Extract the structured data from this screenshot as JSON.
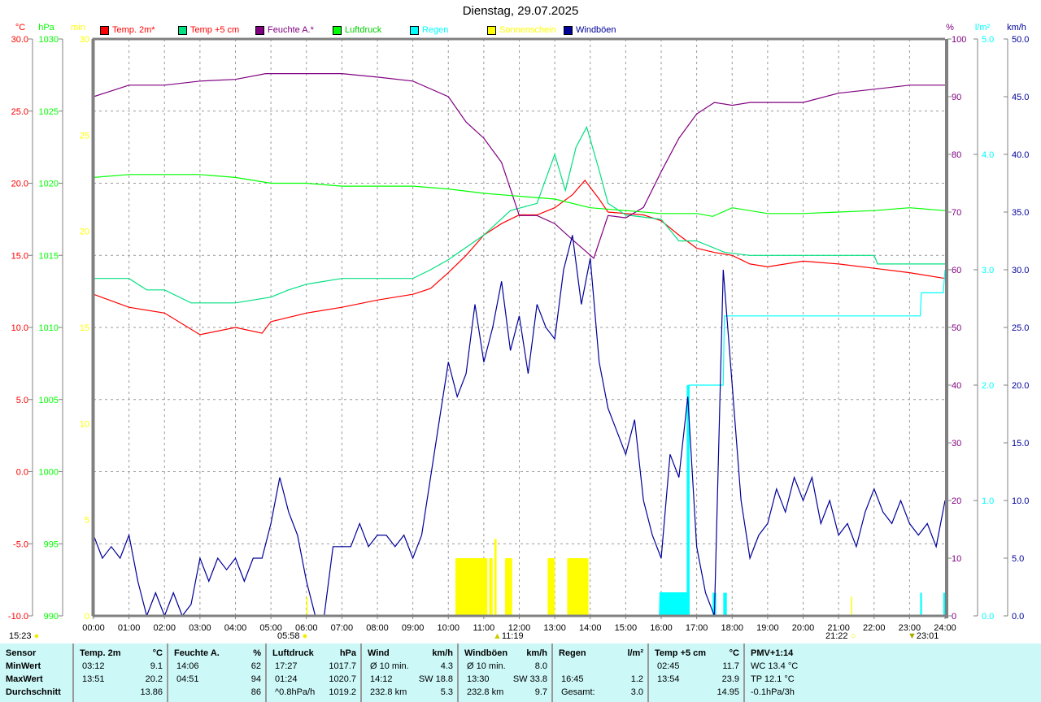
{
  "title": "Dienstag, 29.07.2025",
  "legend": [
    {
      "label": "Temp. 2m*",
      "color": "#ff0000"
    },
    {
      "label": "Temp +5 cm",
      "color": "#00e080"
    },
    {
      "label": "Feuchte A.*",
      "color": "#800080"
    },
    {
      "label": "Luftdruck",
      "color": "#00ff00"
    },
    {
      "label": "Regen",
      "color": "#00ffff"
    },
    {
      "label": "Sonnenschein",
      "color": "#ffff00"
    },
    {
      "label": "Windböen",
      "color": "#000099"
    }
  ],
  "bottom_markers": {
    "sun_hours": "15:23",
    "sunrise": "05:58",
    "noon": "11:19",
    "sunset": "21:22",
    "moon": "23:01"
  },
  "chart_data": {
    "type": "line",
    "title": "Dienstag, 29.07.2025",
    "x_ticks": [
      "00:00",
      "01:00",
      "02:00",
      "03:00",
      "04:00",
      "05:00",
      "06:00",
      "07:00",
      "08:00",
      "09:00",
      "10:00",
      "11:00",
      "12:00",
      "13:00",
      "14:00",
      "15:00",
      "16:00",
      "17:00",
      "18:00",
      "19:00",
      "20:00",
      "21:00",
      "22:00",
      "23:00",
      "24:00"
    ],
    "xlim": [
      0,
      24
    ],
    "axes": {
      "temp": {
        "unit": "°C",
        "color": "#ff0000",
        "ylim": [
          -10,
          30
        ],
        "ticks": [
          "30.0",
          "25.0",
          "20.0",
          "15.0",
          "10.0",
          "5.0",
          "0.0",
          "-5.0",
          "-10.0"
        ]
      },
      "pressure": {
        "unit": "hPa",
        "color": "#00ff00",
        "ylim": [
          990,
          1030
        ],
        "ticks": [
          "1030",
          "1025",
          "1020",
          "1015",
          "1010",
          "1005",
          "1000",
          "995",
          "990"
        ]
      },
      "sun": {
        "unit": "min",
        "color": "#ffff00",
        "ylim": [
          0,
          30
        ],
        "ticks": [
          "30",
          "25",
          "20",
          "15",
          "10",
          "5",
          "0"
        ]
      },
      "humidity": {
        "unit": "%",
        "color": "#800080",
        "ylim": [
          0,
          100
        ],
        "ticks": [
          "100",
          "90",
          "80",
          "70",
          "60",
          "50",
          "40",
          "30",
          "20",
          "10",
          "0"
        ]
      },
      "rain": {
        "unit": "l/m²",
        "color": "#00ffff",
        "ylim": [
          0,
          5
        ],
        "ticks": [
          "5.0",
          "4.0",
          "3.0",
          "2.0",
          "1.0",
          "0.0"
        ]
      },
      "gust": {
        "unit": "km/h",
        "color": "#000099",
        "ylim": [
          0,
          50
        ],
        "ticks": [
          "50.0",
          "45.0",
          "40.0",
          "35.0",
          "30.0",
          "25.0",
          "20.0",
          "15.0",
          "10.0",
          "5.0",
          "0.0"
        ]
      }
    },
    "series": [
      {
        "name": "Temp. 2m*",
        "axis": "temp",
        "color": "#ff0000",
        "points": [
          [
            0,
            12.3
          ],
          [
            1,
            11.4
          ],
          [
            2,
            11.0
          ],
          [
            3,
            9.5
          ],
          [
            4,
            10.0
          ],
          [
            4.75,
            9.6
          ],
          [
            5,
            10.4
          ],
          [
            6,
            11.0
          ],
          [
            7,
            11.4
          ],
          [
            8,
            11.9
          ],
          [
            9,
            12.3
          ],
          [
            9.5,
            12.7
          ],
          [
            10,
            13.8
          ],
          [
            10.5,
            15.0
          ],
          [
            11,
            16.4
          ],
          [
            11.5,
            17.2
          ],
          [
            12,
            17.8
          ],
          [
            12.5,
            17.8
          ],
          [
            13,
            18.3
          ],
          [
            13.5,
            19.2
          ],
          [
            13.85,
            20.2
          ],
          [
            14.25,
            18.9
          ],
          [
            14.5,
            18.0
          ],
          [
            15,
            17.9
          ],
          [
            15.5,
            17.8
          ],
          [
            16,
            17.4
          ],
          [
            16.5,
            16.4
          ],
          [
            17,
            15.5
          ],
          [
            17.5,
            15.2
          ],
          [
            18,
            15.0
          ],
          [
            18.5,
            14.4
          ],
          [
            19,
            14.2
          ],
          [
            20,
            14.6
          ],
          [
            21,
            14.4
          ],
          [
            22,
            14.1
          ],
          [
            23,
            13.8
          ],
          [
            24,
            13.4
          ]
        ]
      },
      {
        "name": "Temp +5 cm",
        "axis": "temp",
        "color": "#00e080",
        "points": [
          [
            0,
            13.4
          ],
          [
            1,
            13.4
          ],
          [
            1.5,
            12.6
          ],
          [
            2,
            12.6
          ],
          [
            2.75,
            11.7
          ],
          [
            4,
            11.7
          ],
          [
            5,
            12.1
          ],
          [
            5.5,
            12.6
          ],
          [
            6,
            13.0
          ],
          [
            7,
            13.4
          ],
          [
            9,
            13.4
          ],
          [
            9.5,
            14.0
          ],
          [
            10,
            14.7
          ],
          [
            11,
            16.4
          ],
          [
            11.75,
            18.1
          ],
          [
            12.5,
            18.6
          ],
          [
            13,
            22.0
          ],
          [
            13.3,
            19.5
          ],
          [
            13.6,
            22.5
          ],
          [
            13.9,
            23.9
          ],
          [
            14.25,
            20.9
          ],
          [
            14.5,
            18.6
          ],
          [
            15,
            17.8
          ],
          [
            16,
            17.5
          ],
          [
            16.5,
            16.0
          ],
          [
            17,
            16.0
          ],
          [
            17.8,
            15.2
          ],
          [
            18.5,
            15.0
          ],
          [
            22,
            15.0
          ],
          [
            22.1,
            14.4
          ],
          [
            24,
            14.4
          ]
        ]
      },
      {
        "name": "Feuchte A.*",
        "axis": "humidity",
        "color": "#800080",
        "points": [
          [
            0,
            90
          ],
          [
            1,
            92
          ],
          [
            2,
            92
          ],
          [
            3,
            92.7
          ],
          [
            4,
            93
          ],
          [
            4.85,
            94
          ],
          [
            6,
            94
          ],
          [
            7,
            94
          ],
          [
            8,
            93.4
          ],
          [
            9,
            92.7
          ],
          [
            10,
            90
          ],
          [
            10.5,
            85.6
          ],
          [
            11,
            82.8
          ],
          [
            11.5,
            78.6
          ],
          [
            12,
            69.4
          ],
          [
            12.5,
            69.4
          ],
          [
            13,
            68
          ],
          [
            13.5,
            65.2
          ],
          [
            14.1,
            62
          ],
          [
            14.5,
            69.4
          ],
          [
            15,
            69
          ],
          [
            15.5,
            70.8
          ],
          [
            16,
            77
          ],
          [
            16.5,
            82.8
          ],
          [
            17,
            87
          ],
          [
            17.5,
            89
          ],
          [
            18,
            88.5
          ],
          [
            18.5,
            89
          ],
          [
            20,
            89
          ],
          [
            21,
            90.6
          ],
          [
            22,
            91.3
          ],
          [
            23,
            92
          ],
          [
            24,
            92
          ]
        ]
      },
      {
        "name": "Luftdruck",
        "axis": "pressure",
        "color": "#00ff00",
        "points": [
          [
            0,
            1020.4
          ],
          [
            1,
            1020.6
          ],
          [
            2,
            1020.6
          ],
          [
            3,
            1020.6
          ],
          [
            4,
            1020.4
          ],
          [
            5,
            1020.0
          ],
          [
            6,
            1020.0
          ],
          [
            7,
            1019.8
          ],
          [
            9,
            1019.8
          ],
          [
            10,
            1019.6
          ],
          [
            11,
            1019.3
          ],
          [
            12,
            1019.1
          ],
          [
            13,
            1018.9
          ],
          [
            14,
            1018.3
          ],
          [
            15,
            1018.1
          ],
          [
            16,
            1017.9
          ],
          [
            17,
            1017.9
          ],
          [
            17.45,
            1017.7
          ],
          [
            18,
            1018.3
          ],
          [
            19,
            1017.9
          ],
          [
            20,
            1017.9
          ],
          [
            21,
            1018.0
          ],
          [
            22,
            1018.1
          ],
          [
            23,
            1018.3
          ],
          [
            24,
            1018.1
          ]
        ]
      },
      {
        "name": "Regen",
        "axis": "rain",
        "color": "#00ffff",
        "points": [
          [
            0,
            0
          ],
          [
            15.95,
            0
          ],
          [
            15.97,
            0.2
          ],
          [
            16.75,
            0.2
          ],
          [
            16.78,
            2.0
          ],
          [
            17.75,
            2.0
          ],
          [
            17.78,
            2.6
          ],
          [
            23.3,
            2.6
          ],
          [
            23.33,
            2.8
          ],
          [
            23.95,
            2.8
          ],
          [
            24,
            3.0
          ]
        ]
      },
      {
        "name": "Windböen",
        "axis": "gust",
        "color": "#000099",
        "values_every_15min": [
          7,
          5,
          6,
          5,
          7,
          3,
          0,
          2,
          0,
          2,
          0,
          1,
          5,
          3,
          5,
          4,
          5,
          3,
          5,
          5,
          8,
          12,
          9,
          7,
          3,
          0,
          0,
          6,
          6,
          6,
          8,
          6,
          7,
          7,
          6,
          7,
          5,
          7,
          12,
          17,
          22,
          19,
          21,
          27,
          22,
          25,
          29,
          23,
          26,
          21,
          27,
          25,
          24,
          30,
          33,
          27,
          31,
          22,
          18,
          16,
          14,
          17,
          10,
          7,
          5,
          14,
          12,
          19,
          6,
          2,
          0,
          30,
          20,
          10,
          5,
          7,
          8,
          11,
          9,
          12,
          10,
          12,
          8,
          10,
          7,
          8,
          6,
          9,
          11,
          9,
          8,
          10,
          8,
          7,
          8,
          6,
          10
        ]
      }
    ],
    "bars": [
      {
        "name": "Sonnenschein",
        "axis": "sun",
        "color": "#ffff00",
        "intervals": [
          [
            10.2,
            11.1,
            3
          ],
          [
            11.15,
            11.25,
            3
          ],
          [
            11.3,
            11.36,
            4
          ],
          [
            11.6,
            11.8,
            3
          ],
          [
            12.8,
            13.0,
            3
          ],
          [
            13.35,
            13.95,
            3
          ],
          [
            6.0,
            6.03,
            1
          ],
          [
            21.35,
            21.38,
            1
          ]
        ]
      },
      {
        "name": "Regen",
        "axis": "rain",
        "color": "#00ffff",
        "intervals": [
          [
            15.95,
            16.8,
            0.2
          ],
          [
            16.72,
            16.8,
            2.0
          ],
          [
            17.45,
            17.55,
            0.2
          ],
          [
            17.75,
            17.85,
            0.2
          ],
          [
            23.3,
            23.35,
            0.2
          ],
          [
            23.95,
            24,
            0.2
          ]
        ]
      }
    ]
  },
  "table": {
    "columns": [
      {
        "header": "Sensor",
        "unit": "",
        "rows": [
          [
            "MinWert",
            ""
          ],
          [
            "MaxWert",
            ""
          ],
          [
            "Durchschnitt",
            ""
          ]
        ]
      },
      {
        "header": "Temp. 2m",
        "unit": "°C",
        "rows": [
          [
            "03:12",
            "9.1"
          ],
          [
            "13:51",
            "20.2"
          ],
          [
            "",
            "13.86"
          ]
        ]
      },
      {
        "header": "Feuchte A.",
        "unit": "%",
        "rows": [
          [
            "14:06",
            "62"
          ],
          [
            "04:51",
            "94"
          ],
          [
            "",
            "86"
          ]
        ]
      },
      {
        "header": "Luftdruck",
        "unit": "hPa",
        "rows": [
          [
            "17:27",
            "1017.7"
          ],
          [
            "01:24",
            "1020.7"
          ],
          [
            "^0.8hPa/h",
            "1019.2"
          ]
        ]
      },
      {
        "header": "Wind",
        "unit": "km/h",
        "rows": [
          [
            "Ø 10 min.",
            "4.3"
          ],
          [
            "14:12",
            "SW 18.8"
          ],
          [
            "232.8 km",
            "5.3"
          ]
        ]
      },
      {
        "header": "Windböen",
        "unit": "km/h",
        "rows": [
          [
            "Ø 10 min.",
            "8.0"
          ],
          [
            "13:30",
            "SW 33.8"
          ],
          [
            "232.8 km",
            "9.7"
          ]
        ]
      },
      {
        "header": "Regen",
        "unit": "l/m²",
        "rows": [
          [
            "",
            ""
          ],
          [
            "16:45",
            "1.2"
          ],
          [
            "Gesamt:",
            "3.0"
          ]
        ]
      },
      {
        "header": "Temp +5 cm",
        "unit": "°C",
        "rows": [
          [
            "02:45",
            "11.7"
          ],
          [
            "13:54",
            "23.9"
          ],
          [
            "",
            "14.95"
          ]
        ]
      },
      {
        "header": "PMV+1:14",
        "unit": "",
        "rows": [
          [
            "WC 13.4 °C",
            ""
          ],
          [
            "TP 12.1 °C",
            ""
          ],
          [
            "-0.1hPa/3h",
            ""
          ]
        ]
      }
    ]
  }
}
